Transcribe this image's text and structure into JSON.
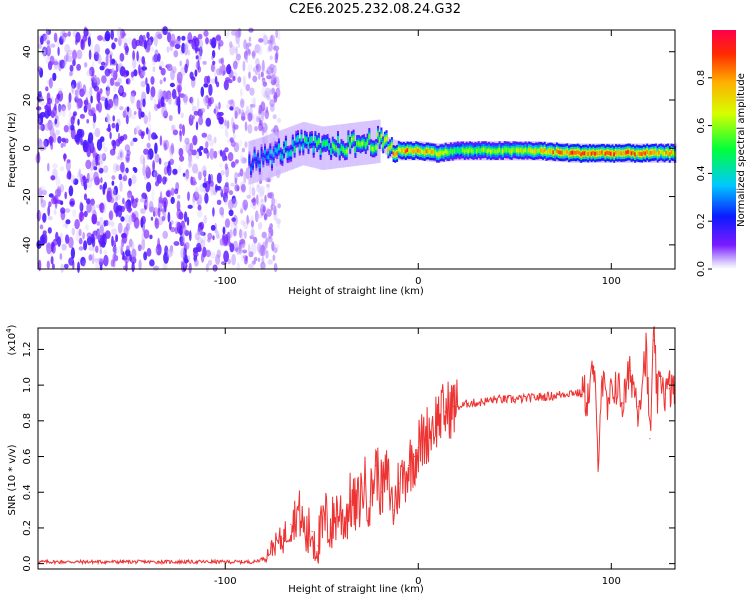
{
  "figure": {
    "title": "C2E6.2025.232.08.24.G32"
  },
  "chart_data": [
    {
      "type": "heatmap",
      "name": "spectrogram",
      "xlabel": "Height of straight line (km)",
      "ylabel": "Frequency (Hz)",
      "xlim": [
        -197,
        133
      ],
      "ylim": [
        -50,
        49
      ],
      "xticks": [
        -100,
        0,
        100
      ],
      "xtick_labels": [
        "-100",
        "0",
        "100"
      ],
      "yticks": [
        -40,
        -20,
        0,
        20,
        40
      ],
      "ytick_labels": [
        "-40",
        "-20",
        "0",
        "20",
        "40"
      ],
      "noise_region_x": [
        -197,
        -80
      ],
      "signal_track": {
        "x": [
          -88,
          -80,
          -70,
          -60,
          -50,
          -40,
          -30,
          -20,
          -15,
          -10,
          0,
          10,
          20,
          40,
          60,
          80,
          100,
          120,
          133
        ],
        "center_hz": [
          -6,
          -4,
          -1,
          2,
          0,
          1,
          2,
          3,
          0,
          -1,
          -1,
          -2,
          -1,
          -1,
          -1,
          -2,
          -2,
          -2,
          -2
        ],
        "peak_amplitude": [
          0.3,
          0.35,
          0.45,
          0.5,
          0.55,
          0.6,
          0.65,
          0.7,
          0.8,
          0.85,
          0.9,
          0.7,
          0.6,
          0.65,
          0.75,
          0.95,
          0.9,
          0.85,
          0.8
        ]
      },
      "colorbar": {
        "label": "Normalized spectral amplitude",
        "range": [
          0,
          1
        ],
        "ticks": [
          0.0,
          0.2,
          0.4,
          0.6,
          0.8
        ],
        "tick_labels": [
          "0.0",
          "0.2",
          "0.4",
          "0.6",
          "0.8"
        ]
      }
    },
    {
      "type": "line",
      "name": "snr",
      "xlabel": "Height of straight line (km)",
      "ylabel": "SNR (10 * v/v)",
      "scale_label": "(x10",
      "scale_exponent": "4",
      "scale_close": ")",
      "xlim": [
        -197,
        133
      ],
      "ylim": [
        -0.03,
        1.32
      ],
      "xticks": [
        -100,
        0,
        100
      ],
      "xtick_labels": [
        "-100",
        "0",
        "100"
      ],
      "yticks": [
        0.0,
        0.2,
        0.4,
        0.6,
        0.8,
        1.0,
        1.2
      ],
      "ytick_labels": [
        "0.0",
        "0.2",
        "0.4",
        "0.6",
        "0.8",
        "1.0",
        "1.2"
      ],
      "series": [
        {
          "name": "SNR",
          "color": "#ee3333",
          "x": [
            -197,
            -180,
            -160,
            -140,
            -120,
            -100,
            -85,
            -80,
            -75,
            -70,
            -66,
            -62,
            -58,
            -55,
            -52,
            -48,
            -45,
            -42,
            -38,
            -35,
            -32,
            -28,
            -25,
            -22,
            -19,
            -16,
            -13,
            -10,
            -7,
            -5,
            -2,
            0,
            3,
            6,
            10,
            14,
            18,
            22,
            26,
            30,
            35,
            40,
            50,
            60,
            70,
            80,
            85,
            88,
            91,
            93,
            95,
            98,
            102,
            106,
            110,
            114,
            118,
            120,
            122,
            124,
            126,
            128,
            130,
            133
          ],
          "values": [
            0.01,
            0.01,
            0.01,
            0.01,
            0.01,
            0.01,
            0.01,
            0.03,
            0.1,
            0.14,
            0.22,
            0.3,
            0.15,
            0.18,
            0.1,
            0.25,
            0.2,
            0.3,
            0.25,
            0.35,
            0.3,
            0.45,
            0.35,
            0.55,
            0.4,
            0.5,
            0.3,
            0.45,
            0.5,
            0.55,
            0.6,
            0.65,
            0.7,
            0.75,
            0.82,
            0.85,
            0.88,
            0.88,
            0.9,
            0.9,
            0.91,
            0.92,
            0.92,
            0.93,
            0.94,
            0.96,
            0.95,
            0.93,
            1.1,
            0.58,
            1.05,
            0.85,
            1.02,
            0.9,
            1.08,
            0.88,
            1.2,
            0.7,
            1.25,
            0.92,
            1.05,
            0.95,
            0.98,
            0.97
          ]
        }
      ]
    }
  ]
}
